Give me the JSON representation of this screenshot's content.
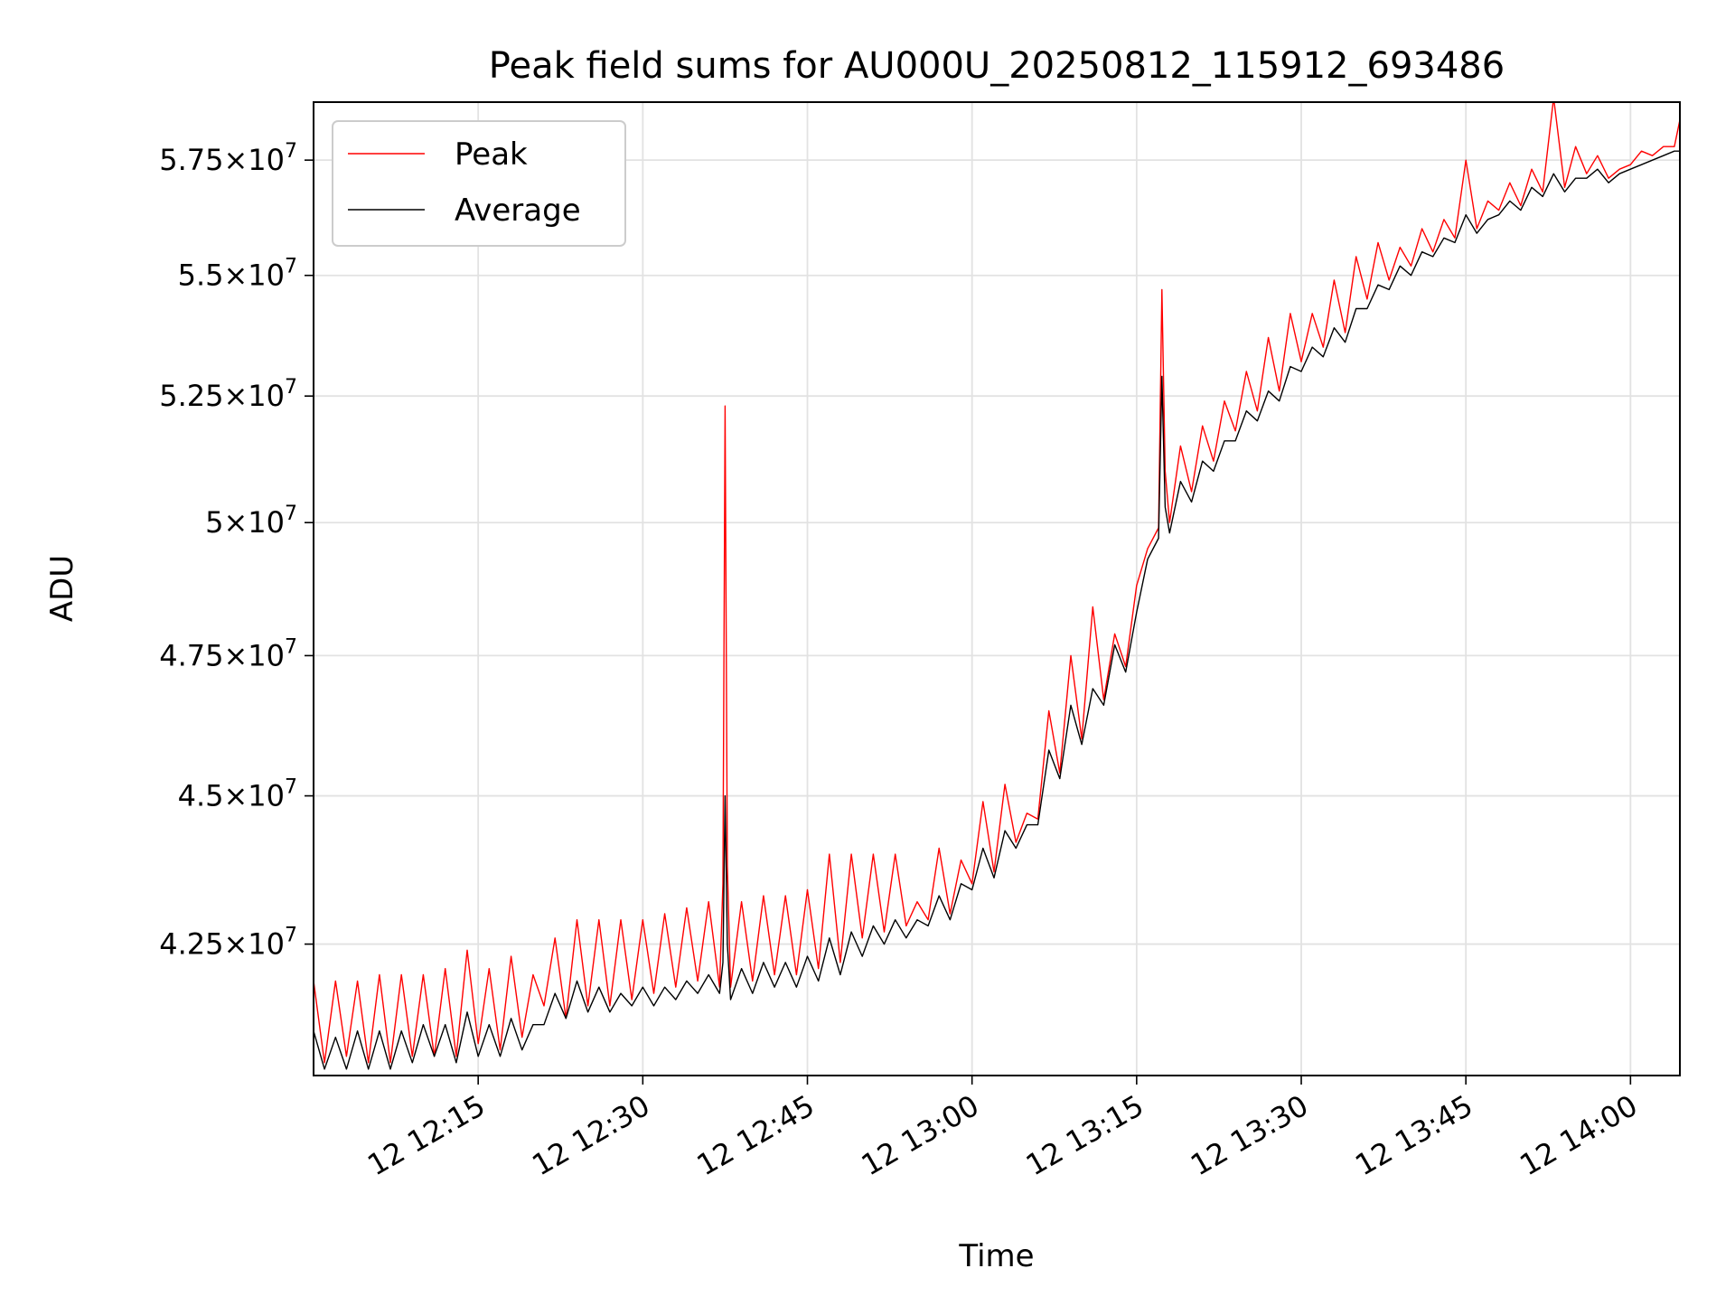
{
  "chart_data": {
    "type": "line",
    "title": "Peak field sums for AU000U_20250812_115912_693486",
    "xlabel": "Time",
    "ylabel": "ADU",
    "y_scale": "log",
    "x_tick_labels": [
      "12 12:15",
      "12 12:30",
      "12 12:45",
      "12 13:00",
      "12 13:15",
      "12 13:30",
      "12 13:45",
      "12 14:00"
    ],
    "x_tick_minutes": [
      735,
      750,
      765,
      780,
      795,
      810,
      825,
      840
    ],
    "x_unit": "minutes after 00:00 on day 12",
    "xlim": [
      720,
      844.5
    ],
    "y_ticks": [
      {
        "value": 42500000,
        "mant": "4.25",
        "exp": "7"
      },
      {
        "value": 45000000,
        "mant": "4.5",
        "exp": "7"
      },
      {
        "value": 47500000,
        "mant": "4.75",
        "exp": "7"
      },
      {
        "value": 50000000,
        "mant": "5",
        "exp": "7"
      },
      {
        "value": 52500000,
        "mant": "5.25",
        "exp": "7"
      },
      {
        "value": 55000000,
        "mant": "5.5",
        "exp": "7"
      },
      {
        "value": 57500000,
        "mant": "5.75",
        "exp": "7"
      }
    ],
    "ylim": [
      40400000,
      58800000
    ],
    "grid": true,
    "legend_position": "upper-left",
    "series": [
      {
        "name": "Peak",
        "color": "#ff0000",
        "x": [
          720,
          721,
          722,
          723,
          724,
          725,
          726,
          727,
          728,
          729,
          730,
          731,
          732,
          733,
          734,
          735,
          736,
          737,
          738,
          739,
          740,
          741,
          742,
          743,
          744,
          745,
          746,
          747,
          748,
          749,
          750,
          751,
          752,
          753,
          754,
          755,
          756,
          757,
          757.3,
          757.5,
          757.7,
          758,
          759,
          760,
          761,
          762,
          763,
          764,
          765,
          766,
          767,
          768,
          769,
          770,
          771,
          772,
          773,
          774,
          775,
          776,
          777,
          778,
          779,
          780,
          781,
          782,
          783,
          784,
          785,
          786,
          787,
          788,
          789,
          790,
          791,
          792,
          793,
          794,
          795,
          796,
          797,
          797.3,
          797.6,
          798,
          799,
          800,
          801,
          802,
          803,
          804,
          805,
          806,
          807,
          808,
          809,
          810,
          811,
          812,
          813,
          814,
          815,
          816,
          817,
          818,
          819,
          820,
          821,
          822,
          823,
          824,
          825,
          826,
          827,
          828,
          829,
          830,
          831,
          832,
          833,
          834,
          835,
          836,
          837,
          838,
          839,
          840,
          841,
          842,
          843,
          844,
          844.5
        ],
        "y": [
          41900000,
          40600000,
          41900000,
          40700000,
          41900000,
          40600000,
          42000000,
          40600000,
          42000000,
          40700000,
          42000000,
          40700000,
          42100000,
          40700000,
          42400000,
          40900000,
          42100000,
          40800000,
          42300000,
          41000000,
          42000000,
          41500000,
          42600000,
          41300000,
          42900000,
          41500000,
          42900000,
          41500000,
          42900000,
          41600000,
          42900000,
          41700000,
          43000000,
          41800000,
          43100000,
          41900000,
          43200000,
          41800000,
          43500000,
          52300000,
          43800000,
          41800000,
          43200000,
          41900000,
          43300000,
          42000000,
          43300000,
          42000000,
          43400000,
          42100000,
          44000000,
          42200000,
          44000000,
          42600000,
          44000000,
          42700000,
          44000000,
          42800000,
          43200000,
          42900000,
          44100000,
          43000000,
          43900000,
          43500000,
          44900000,
          43700000,
          45200000,
          44200000,
          44700000,
          44600000,
          46500000,
          45400000,
          47500000,
          46000000,
          48400000,
          46700000,
          47900000,
          47300000,
          48800000,
          49500000,
          49900000,
          54700000,
          51000000,
          50000000,
          51500000,
          50600000,
          51900000,
          51200000,
          52400000,
          51800000,
          53000000,
          52200000,
          53700000,
          52600000,
          54200000,
          53200000,
          54200000,
          53500000,
          54900000,
          53800000,
          55400000,
          54500000,
          55700000,
          54900000,
          55600000,
          55200000,
          56000000,
          55500000,
          56200000,
          55800000,
          57500000,
          56000000,
          56600000,
          56400000,
          57000000,
          56500000,
          57300000,
          56800000,
          58900000,
          56900000,
          57800000,
          57200000,
          57600000,
          57100000,
          57300000,
          57400000,
          57700000,
          57600000,
          57800000,
          57800000,
          58400000
        ]
      },
      {
        "name": "Average",
        "color": "#000000",
        "x": [
          720,
          721,
          722,
          723,
          724,
          725,
          726,
          727,
          728,
          729,
          730,
          731,
          732,
          733,
          734,
          735,
          736,
          737,
          738,
          739,
          740,
          741,
          742,
          743,
          744,
          745,
          746,
          747,
          748,
          749,
          750,
          751,
          752,
          753,
          754,
          755,
          756,
          757,
          757.3,
          757.5,
          757.7,
          758,
          759,
          760,
          761,
          762,
          763,
          764,
          765,
          766,
          767,
          768,
          769,
          770,
          771,
          772,
          773,
          774,
          775,
          776,
          777,
          778,
          779,
          780,
          781,
          782,
          783,
          784,
          785,
          786,
          787,
          788,
          789,
          790,
          791,
          792,
          793,
          794,
          795,
          796,
          797,
          797.3,
          797.6,
          798,
          799,
          800,
          801,
          802,
          803,
          804,
          805,
          806,
          807,
          808,
          809,
          810,
          811,
          812,
          813,
          814,
          815,
          816,
          817,
          818,
          819,
          820,
          821,
          822,
          823,
          824,
          825,
          826,
          827,
          828,
          829,
          830,
          831,
          832,
          833,
          834,
          835,
          836,
          837,
          838,
          839,
          840,
          841,
          842,
          843,
          844,
          844.5
        ],
        "y": [
          41100000,
          40500000,
          41000000,
          40500000,
          41100000,
          40500000,
          41100000,
          40500000,
          41100000,
          40600000,
          41200000,
          40700000,
          41200000,
          40600000,
          41400000,
          40700000,
          41200000,
          40700000,
          41300000,
          40800000,
          41200000,
          41200000,
          41700000,
          41300000,
          41900000,
          41400000,
          41800000,
          41400000,
          41700000,
          41500000,
          41800000,
          41500000,
          41800000,
          41600000,
          41900000,
          41700000,
          42000000,
          41700000,
          42200000,
          45000000,
          42500000,
          41600000,
          42100000,
          41700000,
          42200000,
          41800000,
          42200000,
          41800000,
          42300000,
          41900000,
          42600000,
          42000000,
          42700000,
          42300000,
          42800000,
          42500000,
          42900000,
          42600000,
          42900000,
          42800000,
          43300000,
          42900000,
          43500000,
          43400000,
          44100000,
          43600000,
          44400000,
          44100000,
          44500000,
          44500000,
          45800000,
          45300000,
          46600000,
          45900000,
          46900000,
          46600000,
          47700000,
          47200000,
          48300000,
          49300000,
          49700000,
          52900000,
          50300000,
          49800000,
          50800000,
          50400000,
          51200000,
          51000000,
          51600000,
          51600000,
          52200000,
          52000000,
          52600000,
          52400000,
          53100000,
          53000000,
          53500000,
          53300000,
          53900000,
          53600000,
          54300000,
          54300000,
          54800000,
          54700000,
          55200000,
          55000000,
          55500000,
          55400000,
          55800000,
          55700000,
          56300000,
          55900000,
          56200000,
          56300000,
          56600000,
          56400000,
          56900000,
          56700000,
          57200000,
          56800000,
          57100000,
          57100000,
          57300000,
          57000000,
          57200000,
          57300000,
          57400000,
          57500000,
          57600000,
          57700000,
          57700000
        ]
      }
    ]
  }
}
